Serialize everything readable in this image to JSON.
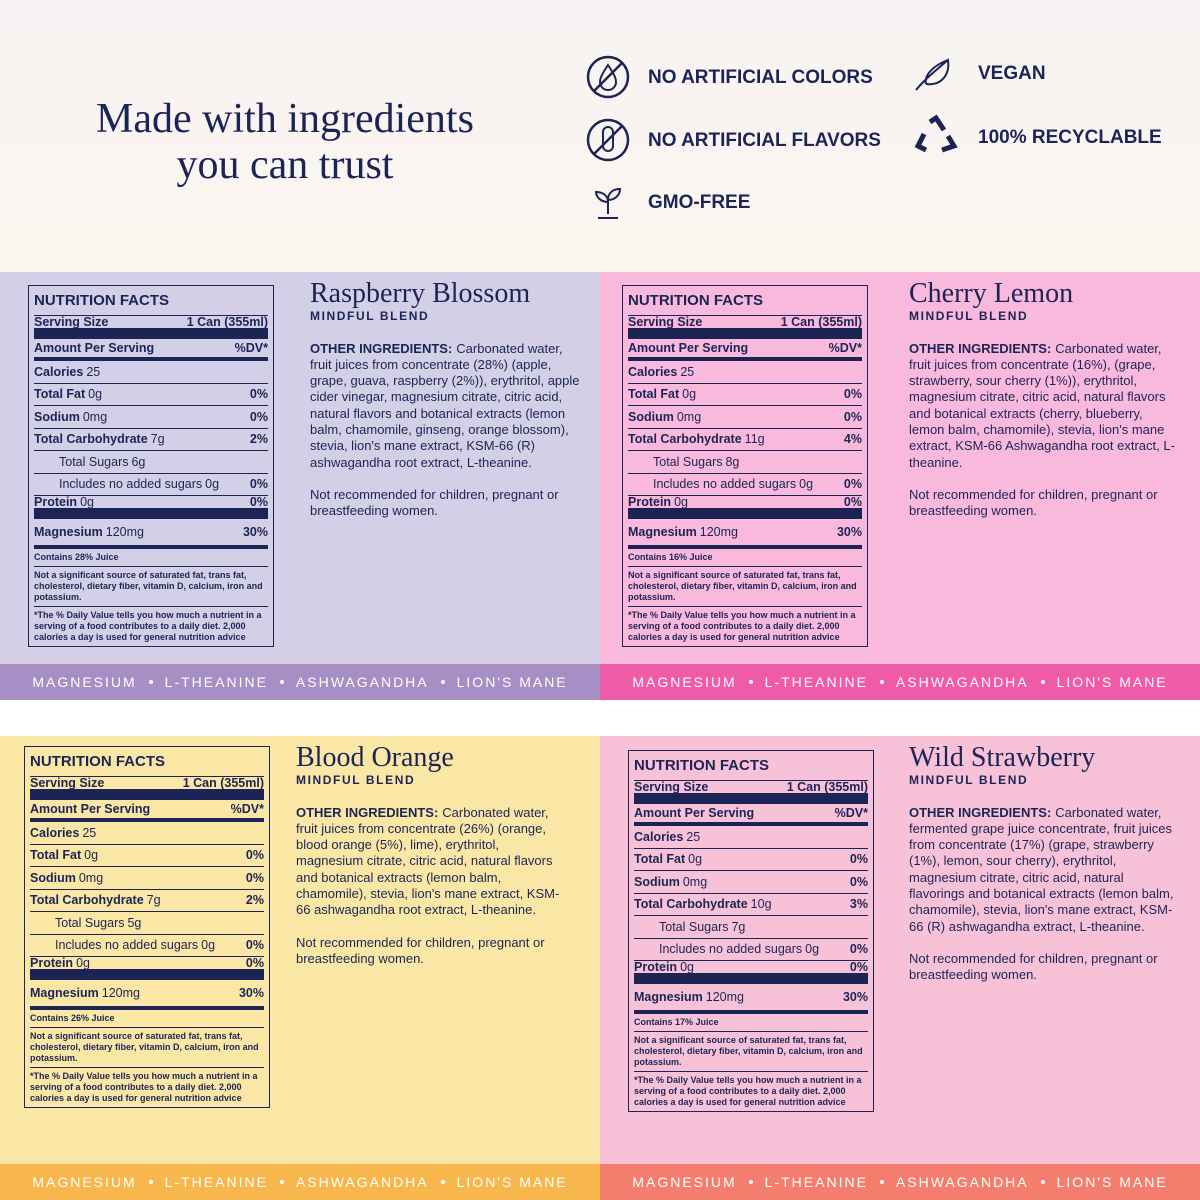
{
  "header": {
    "title_lines": [
      "Made with ingredients",
      "you can trust"
    ],
    "badges": [
      "NO ARTIFICIAL COLORS",
      "NO ARTIFICIAL FLAVORS",
      "GMO-FREE",
      "VEGAN",
      "100% RECYCLABLE"
    ]
  },
  "common": {
    "subtitle": "MINDFUL BLEND",
    "ingredients_label": "OTHER INGREDIENTS:",
    "warning": "Not recommended for children, pregnant or breastfeeding women.",
    "benefits": [
      "MAGNESIUM",
      "L-THEANINE",
      "ASHWAGANDHA",
      "LION'S MANE"
    ]
  },
  "nutrition_labels": {
    "title": "NUTRITION FACTS",
    "serving_size": "Serving Size",
    "serving": "1 Can (355ml)",
    "amount": "Amount Per Serving",
    "dv": "%DV*",
    "calories": "Calories",
    "total_fat": "Total Fat",
    "sodium": "Sodium",
    "total_carb": "Total Carbohydrate",
    "total_sugars": "Total Sugars",
    "added": "Includes no added sugars",
    "protein": "Protein",
    "magnesium": "Magnesium",
    "not_significant": "Not a significant source of saturated fat, trans fat, cholesterol, dietary fiber, vitamin D, calcium, iron and potassium.",
    "dv_note": "*The % Daily Value tells you how much a nutrient in a serving of a food contributes to a daily diet. 2,000 calories a day is used for general nutrition advice"
  },
  "products": [
    {
      "name": "Raspberry Blossom",
      "ingredients": "Carbonated water, fruit juices from concentrate (28%) (apple, grape, guava, raspberry (2%)), erythritol, apple cider vinegar, magnesium citrate, citric acid, natural flavors and botanical extracts (lemon balm, chamomile, ginseng, orange blossom), stevia,  lion's mane extract, KSM-66 (R) ashwagandha root extract, L-theanine.",
      "nutrition": {
        "calories": "25",
        "total_fat": [
          "0g",
          "0%"
        ],
        "sodium": [
          "0mg",
          "0%"
        ],
        "total_carb": [
          "7g",
          "2%"
        ],
        "total_sugars": "6g",
        "added": [
          "0g",
          "0%"
        ],
        "protein": [
          "0g",
          "0%"
        ],
        "magnesium": [
          "120mg",
          "30%"
        ],
        "juice": "Contains 28% Juice"
      }
    },
    {
      "name": "Cherry Lemon",
      "ingredients": "Carbonated water, fruit juices from concentrate (16%), (grape, strawberry, sour cherry (1%)), erythritol, magnesium citrate, citric acid, natural flavors and botanical extracts (cherry, blueberry, lemon balm, chamomile), stevia, lion's mane extract, KSM-66 Ashwagandha root extract, L-theanine.",
      "nutrition": {
        "calories": "25",
        "total_fat": [
          "0g",
          "0%"
        ],
        "sodium": [
          "0mg",
          "0%"
        ],
        "total_carb": [
          "11g",
          "4%"
        ],
        "total_sugars": "8g",
        "added": [
          "0g",
          "0%"
        ],
        "protein": [
          "0g",
          "0%"
        ],
        "magnesium": [
          "120mg",
          "30%"
        ],
        "juice": "Contains 16% Juice"
      }
    },
    {
      "name": "Blood Orange",
      "ingredients": "Carbonated water, fruit juices from concentrate (26%) (orange, blood orange (5%), lime), erythritol, magnesium citrate, citric acid, natural flavors and botanical extracts (lemon balm, chamomile), stevia, lion's mane extract, KSM-66 ashwagandha root extract, L-theanine.",
      "nutrition": {
        "calories": "25",
        "total_fat": [
          "0g",
          "0%"
        ],
        "sodium": [
          "0mg",
          "0%"
        ],
        "total_carb": [
          "7g",
          "2%"
        ],
        "total_sugars": "5g",
        "added": [
          "0g",
          "0%"
        ],
        "protein": [
          "0g",
          "0%"
        ],
        "magnesium": [
          "120mg",
          "30%"
        ],
        "juice": "Contains 26% Juice"
      }
    },
    {
      "name": "Wild Strawberry",
      "ingredients": "Carbonated water, fermented grape juice concentrate, fruit juices from concentrate (17%) (grape, strawberry (1%), lemon, sour cherry), erythritol, magnesium citrate, citric acid, natural flavorings and botanical extracts (lemon balm, chamomile), stevia, lion's mane extract, KSM-66 (R) ashwagandha extract, L-theanine.",
      "nutrition": {
        "calories": "25",
        "total_fat": [
          "0g",
          "0%"
        ],
        "sodium": [
          "0mg",
          "0%"
        ],
        "total_carb": [
          "10g",
          "3%"
        ],
        "total_sugars": "7g",
        "added": [
          "0g",
          "0%"
        ],
        "protein": [
          "0g",
          "0%"
        ],
        "magnesium": [
          "120mg",
          "30%"
        ],
        "juice": "Contains 17% Juice"
      }
    }
  ]
}
